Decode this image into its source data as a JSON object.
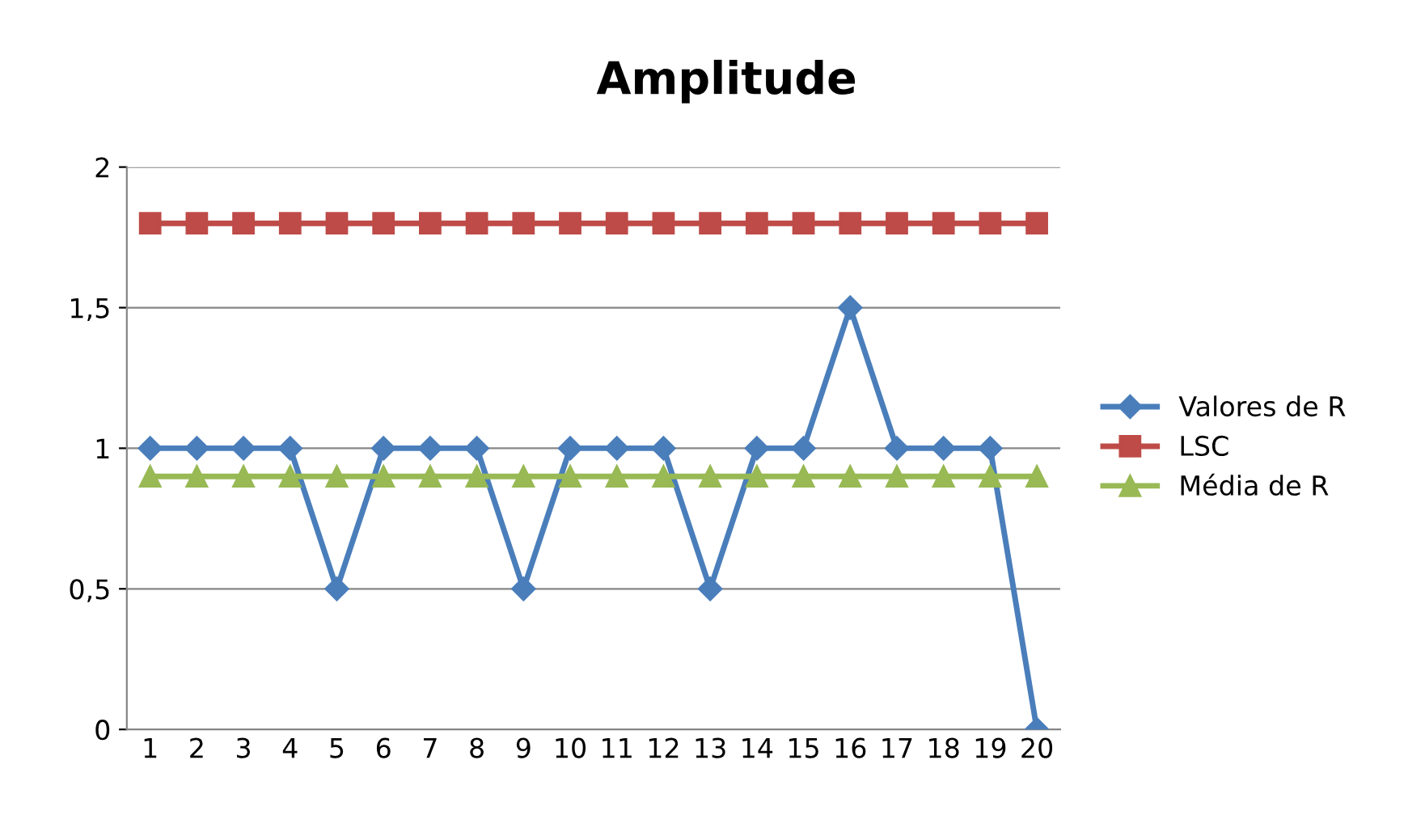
{
  "chart_data": {
    "type": "line",
    "title": "Amplitude",
    "categories": [
      "1",
      "2",
      "3",
      "4",
      "5",
      "6",
      "7",
      "8",
      "9",
      "10",
      "11",
      "12",
      "13",
      "14",
      "15",
      "16",
      "17",
      "18",
      "19",
      "20"
    ],
    "series": [
      {
        "name": "Valores de R",
        "color": "#4a7ebb",
        "marker": "diamond",
        "values": [
          1,
          1,
          1,
          1,
          0.5,
          1,
          1,
          1,
          0.5,
          1,
          1,
          1,
          0.5,
          1,
          1,
          1.5,
          1,
          1,
          1,
          0
        ]
      },
      {
        "name": "LSC",
        "color": "#be4b48",
        "marker": "square",
        "values": [
          1.8,
          1.8,
          1.8,
          1.8,
          1.8,
          1.8,
          1.8,
          1.8,
          1.8,
          1.8,
          1.8,
          1.8,
          1.8,
          1.8,
          1.8,
          1.8,
          1.8,
          1.8,
          1.8,
          1.8
        ]
      },
      {
        "name": "Média de R",
        "color": "#98b954",
        "marker": "triangle",
        "values": [
          0.9,
          0.9,
          0.9,
          0.9,
          0.9,
          0.9,
          0.9,
          0.9,
          0.9,
          0.9,
          0.9,
          0.9,
          0.9,
          0.9,
          0.9,
          0.9,
          0.9,
          0.9,
          0.9,
          0.9
        ]
      }
    ],
    "ylim": [
      0,
      2
    ],
    "yticks": [
      {
        "value": 0,
        "label": "0"
      },
      {
        "value": 0.5,
        "label": "0,5"
      },
      {
        "value": 1,
        "label": "1"
      },
      {
        "value": 1.5,
        "label": "1,5"
      },
      {
        "value": 2,
        "label": "2"
      }
    ],
    "grid": "y",
    "legend": "right",
    "line_style": "solid"
  }
}
